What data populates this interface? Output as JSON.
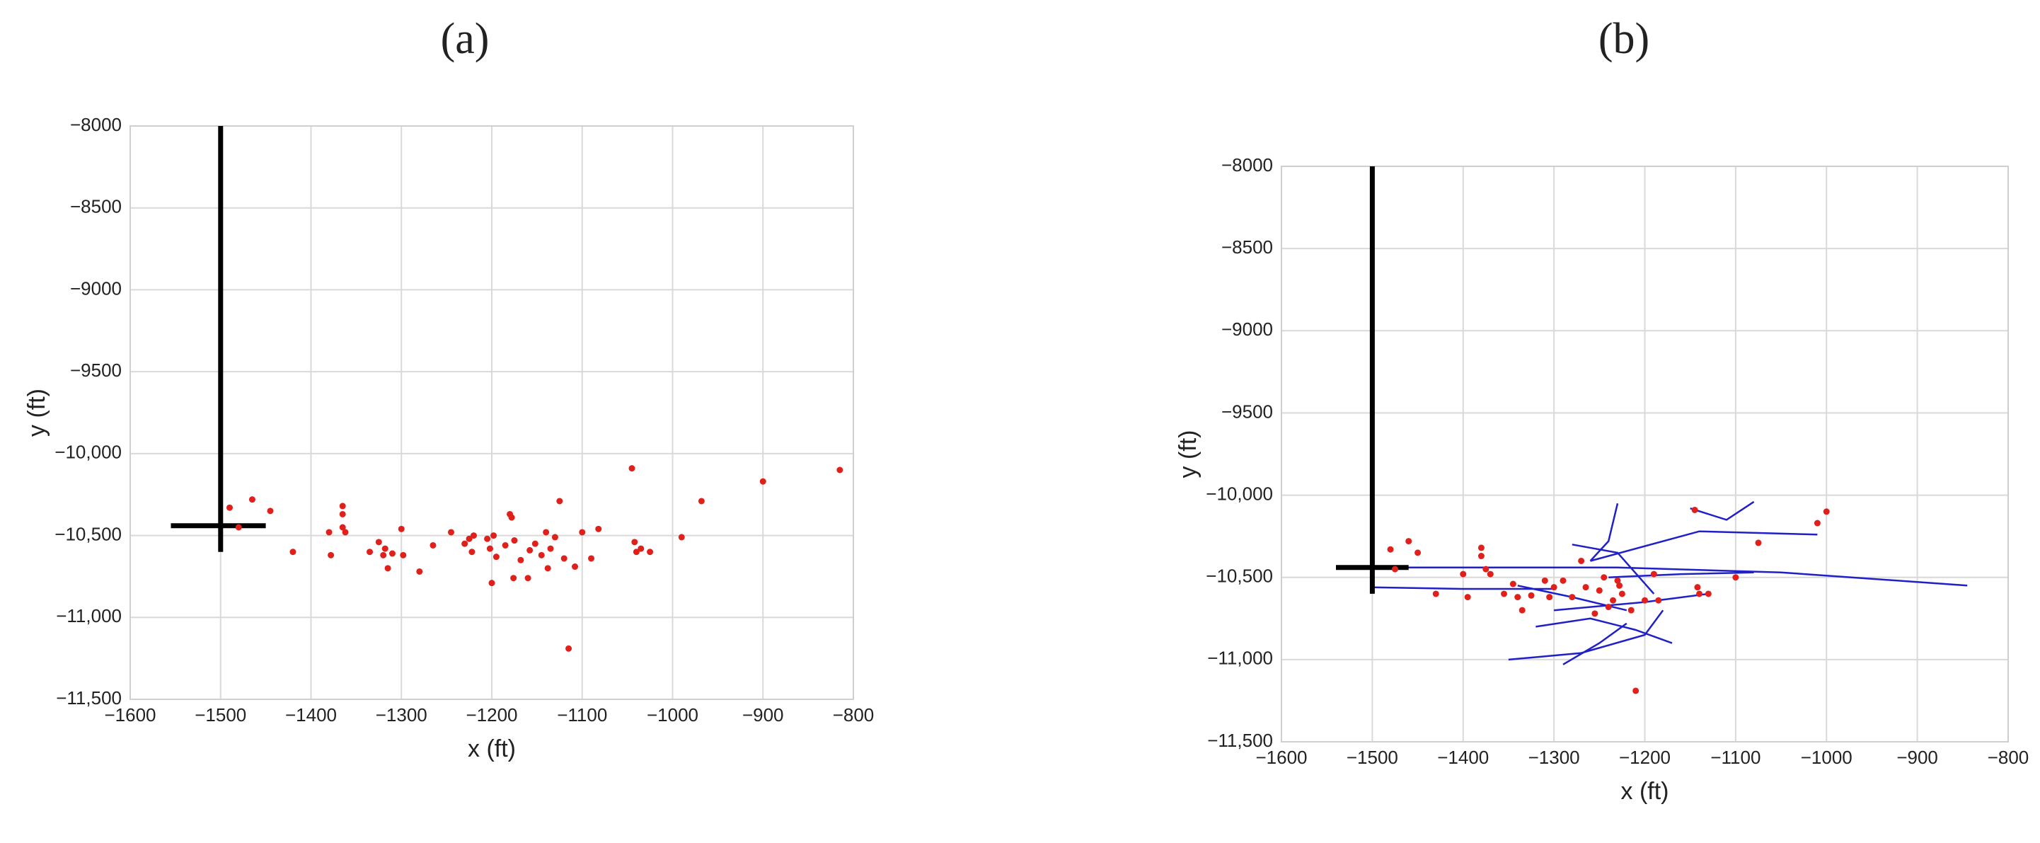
{
  "chart_data": [
    {
      "type": "scatter",
      "title": "(a)",
      "x_label": "x (ft)",
      "y_label": "y (ft)",
      "grid": true,
      "xlim": [
        -1600,
        -800
      ],
      "ylim": [
        -11500,
        -8000
      ],
      "xticks": [
        {
          "value": -1600,
          "label": "−1600"
        },
        {
          "value": -1500,
          "label": "−1500"
        },
        {
          "value": -1400,
          "label": "−1400"
        },
        {
          "value": -1300,
          "label": "−1300"
        },
        {
          "value": -1200,
          "label": "−1200"
        },
        {
          "value": -1100,
          "label": "−1100"
        },
        {
          "value": -1000,
          "label": "−1000"
        },
        {
          "value": -900,
          "label": "−900"
        },
        {
          "value": -800,
          "label": "−800"
        }
      ],
      "yticks": [
        {
          "value": -8000,
          "label": "−8000"
        },
        {
          "value": -8500,
          "label": "−8500"
        },
        {
          "value": -9000,
          "label": "−9000"
        },
        {
          "value": -9500,
          "label": "−9500"
        },
        {
          "value": -10000,
          "label": "−10,000"
        },
        {
          "value": -10500,
          "label": "−10,500"
        },
        {
          "value": -11000,
          "label": "−11,000"
        },
        {
          "value": -11500,
          "label": "−11,500"
        }
      ],
      "series": [
        {
          "mode": "lines",
          "color": "#000000",
          "x": [
            -1500,
            -1500,
            null,
            -1555,
            -1450
          ],
          "values": [
            -8000,
            -10600,
            null,
            -10440,
            -10440
          ]
        },
        {
          "mode": "markers",
          "color": "#e0201b",
          "x": [
            -1490,
            -1480,
            -1465,
            -1445,
            -1420,
            -1380,
            -1378,
            -1365,
            -1365,
            -1365,
            -1362,
            -1335,
            -1325,
            -1320,
            -1318,
            -1315,
            -1310,
            -1300,
            -1298,
            -1280,
            -1265,
            -1245,
            -1230,
            -1225,
            -1222,
            -1220,
            -1205,
            -1202,
            -1200,
            -1198,
            -1195,
            -1185,
            -1180,
            -1178,
            -1176,
            -1175,
            -1168,
            -1160,
            -1158,
            -1152,
            -1145,
            -1140,
            -1138,
            -1135,
            -1130,
            -1125,
            -1120,
            -1115,
            -1108,
            -1100,
            -1090,
            -1082,
            -1045,
            -1042,
            -1040,
            -1035,
            -1025,
            -990,
            -968,
            -900,
            -815
          ],
          "values": [
            -10330,
            -10450,
            -10280,
            -10350,
            -10600,
            -10480,
            -10620,
            -10320,
            -10370,
            -10450,
            -10480,
            -10600,
            -10540,
            -10620,
            -10580,
            -10700,
            -10610,
            -10460,
            -10620,
            -10720,
            -10560,
            -10480,
            -10550,
            -10520,
            -10600,
            -10500,
            -10520,
            -10580,
            -10790,
            -10500,
            -10630,
            -10560,
            -10370,
            -10390,
            -10760,
            -10530,
            -10650,
            -10760,
            -10590,
            -10550,
            -10620,
            -10480,
            -10700,
            -10580,
            -10510,
            -10290,
            -10640,
            -11190,
            -10690,
            -10480,
            -10640,
            -10460,
            -10090,
            -10540,
            -10600,
            -10580,
            -10600,
            -10510,
            -10290,
            -10170,
            -10100
          ]
        }
      ]
    },
    {
      "type": "scatter",
      "title": "(b)",
      "x_label": "x (ft)",
      "y_label": "y (ft)",
      "grid": true,
      "xlim": [
        -1600,
        -800
      ],
      "ylim": [
        -11500,
        -8000
      ],
      "xticks": [
        {
          "value": -1600,
          "label": "−1600"
        },
        {
          "value": -1500,
          "label": "−1500"
        },
        {
          "value": -1400,
          "label": "−1400"
        },
        {
          "value": -1300,
          "label": "−1300"
        },
        {
          "value": -1200,
          "label": "−1200"
        },
        {
          "value": -1100,
          "label": "−1100"
        },
        {
          "value": -1000,
          "label": "−1000"
        },
        {
          "value": -900,
          "label": "−900"
        },
        {
          "value": -800,
          "label": "−800"
        }
      ],
      "yticks": [
        {
          "value": -8000,
          "label": "−8000"
        },
        {
          "value": -8500,
          "label": "−8500"
        },
        {
          "value": -9000,
          "label": "−9000"
        },
        {
          "value": -9500,
          "label": "−9500"
        },
        {
          "value": -10000,
          "label": "−10,000"
        },
        {
          "value": -10500,
          "label": "−10,500"
        },
        {
          "value": -11000,
          "label": "−11,000"
        },
        {
          "value": -11500,
          "label": "−11,500"
        }
      ],
      "series": [
        {
          "mode": "lines",
          "color": "#2020c8",
          "x": [
            -1500,
            -1230,
            -1050,
            -845,
            null,
            -1500,
            -1400,
            -1300,
            null,
            -1260,
            -1140,
            -1010,
            null,
            -1230,
            -1240,
            -1260,
            null,
            -1350,
            -1270,
            -1200,
            -1180,
            null,
            -1290,
            -1250,
            -1220,
            null,
            -1300,
            -1200,
            -1130,
            null,
            -1240,
            -1160,
            -1080,
            null,
            -1150,
            -1110,
            -1080,
            null,
            -1320,
            -1260,
            -1210,
            -1170,
            null,
            -1280,
            -1230,
            -1190,
            null,
            -1340,
            -1280,
            -1220
          ],
          "values": [
            -10440,
            -10440,
            -10470,
            -10550,
            null,
            -10560,
            -10570,
            -10570,
            null,
            -10400,
            -10220,
            -10240,
            null,
            -10050,
            -10280,
            -10400,
            null,
            -11000,
            -10960,
            -10850,
            -10700,
            null,
            -11030,
            -10900,
            -10780,
            null,
            -10700,
            -10650,
            -10600,
            null,
            -10500,
            -10480,
            -10470,
            null,
            -10080,
            -10150,
            -10040,
            null,
            -10800,
            -10750,
            -10820,
            -10900,
            null,
            -10300,
            -10350,
            -10600,
            null,
            -10550,
            -10620,
            -10700
          ]
        },
        {
          "mode": "lines",
          "color": "#000000",
          "x": [
            -1500,
            -1500,
            null,
            -1540,
            -1460
          ],
          "values": [
            -8000,
            -10600,
            null,
            -10440,
            -10440
          ]
        },
        {
          "mode": "markers",
          "color": "#e0201b",
          "x": [
            -1480,
            -1475,
            -1460,
            -1450,
            -1430,
            -1400,
            -1395,
            -1380,
            -1380,
            -1375,
            -1370,
            -1355,
            -1345,
            -1340,
            -1335,
            -1325,
            -1310,
            -1305,
            -1300,
            -1290,
            -1280,
            -1270,
            -1265,
            -1255,
            -1250,
            -1245,
            -1240,
            -1235,
            -1230,
            -1228,
            -1225,
            -1215,
            -1210,
            -1200,
            -1190,
            -1185,
            -1145,
            -1142,
            -1140,
            -1130,
            -1100,
            -1075,
            -1010,
            -1000
          ],
          "values": [
            -10330,
            -10450,
            -10280,
            -10350,
            -10600,
            -10480,
            -10620,
            -10320,
            -10370,
            -10450,
            -10480,
            -10600,
            -10540,
            -10620,
            -10700,
            -10610,
            -10520,
            -10620,
            -10560,
            -10520,
            -10620,
            -10400,
            -10560,
            -10720,
            -10580,
            -10500,
            -10680,
            -10640,
            -10520,
            -10550,
            -10600,
            -10700,
            -11190,
            -10640,
            -10480,
            -10640,
            -10090,
            -10560,
            -10600,
            -10600,
            -10500,
            -10290,
            -10170,
            -10100
          ]
        }
      ]
    }
  ]
}
